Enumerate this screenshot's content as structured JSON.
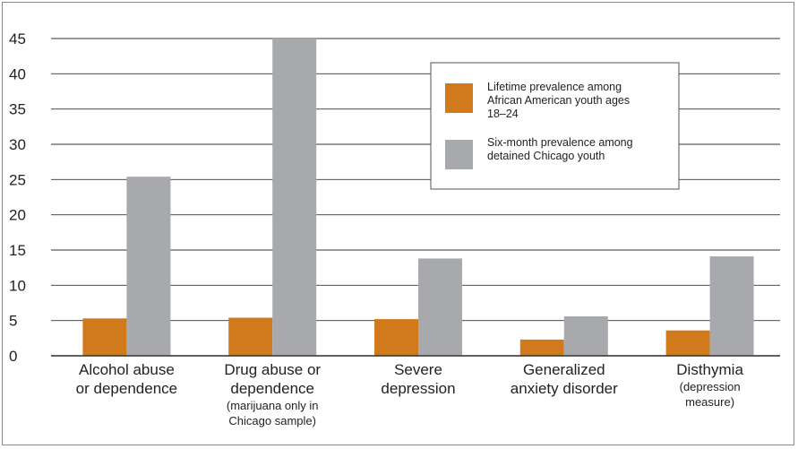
{
  "chart_data": {
    "type": "bar",
    "title": "",
    "xlabel": "",
    "ylabel": "",
    "ylim": [
      0,
      45
    ],
    "yticks": [
      0,
      5,
      10,
      15,
      20,
      25,
      30,
      35,
      40,
      45
    ],
    "grid": true,
    "legend_position": "top-right",
    "categories": [
      {
        "lines": [
          "Alcohol abuse",
          "or dependence"
        ],
        "sublines": []
      },
      {
        "lines": [
          "Drug abuse or",
          "dependence"
        ],
        "sublines": [
          "(marijuana only in",
          "Chicago sample)"
        ]
      },
      {
        "lines": [
          "Severe",
          "depression"
        ],
        "sublines": []
      },
      {
        "lines": [
          "Generalized",
          "anxiety disorder"
        ],
        "sublines": []
      },
      {
        "lines": [
          "Disthymia"
        ],
        "sublines": [
          "(depression",
          "measure)"
        ]
      }
    ],
    "series": [
      {
        "name_lines": [
          "Lifetime prevalence among",
          "African American youth ages",
          "18–24"
        ],
        "color": "#d07a1c",
        "values": [
          5.3,
          5.4,
          5.2,
          2.3,
          3.6
        ]
      },
      {
        "name_lines": [
          "Six-month prevalence among",
          "detained Chicago youth"
        ],
        "color": "#a7a9ac",
        "values": [
          25.4,
          45,
          13.8,
          5.6,
          14.1
        ]
      }
    ]
  }
}
